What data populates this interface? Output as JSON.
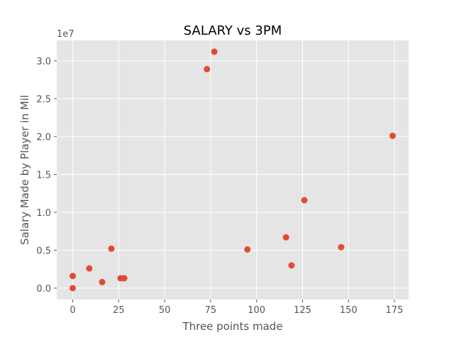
{
  "chart_data": {
    "type": "scatter",
    "title": "SALARY vs 3PM",
    "xlabel": "Three points made",
    "ylabel": "Salary Made by Player in Mil",
    "y_offset_label": "1e7",
    "xlim": [
      -8.7,
      182.7
    ],
    "ylim": [
      -1.5,
      32.7
    ],
    "x_ticks": [
      0,
      25,
      50,
      75,
      100,
      125,
      150,
      175
    ],
    "x_tick_labels": [
      "0",
      "25",
      "50",
      "75",
      "100",
      "125",
      "150",
      "175"
    ],
    "y_ticks": [
      0.0,
      5.0,
      10.0,
      15.0,
      20.0,
      25.0,
      30.0
    ],
    "y_tick_labels": [
      "0.0",
      "0.5",
      "1.0",
      "1.5",
      "2.0",
      "2.5",
      "3.0"
    ],
    "y_unit_note": "y values in units of 1e6 (axis shows 1e7 scale)",
    "grid": true,
    "style": "ggplot",
    "marker_color": "#e24a33",
    "points": [
      {
        "x": 0,
        "y": 1.6
      },
      {
        "x": 0,
        "y": 0.0
      },
      {
        "x": 9,
        "y": 2.6
      },
      {
        "x": 16,
        "y": 0.8
      },
      {
        "x": 21,
        "y": 5.2
      },
      {
        "x": 26,
        "y": 1.3
      },
      {
        "x": 28,
        "y": 1.3
      },
      {
        "x": 73,
        "y": 28.9
      },
      {
        "x": 77,
        "y": 31.2
      },
      {
        "x": 95,
        "y": 5.1
      },
      {
        "x": 116,
        "y": 6.7
      },
      {
        "x": 119,
        "y": 3.0
      },
      {
        "x": 126,
        "y": 11.6
      },
      {
        "x": 146,
        "y": 5.4
      },
      {
        "x": 174,
        "y": 20.1
      }
    ]
  }
}
